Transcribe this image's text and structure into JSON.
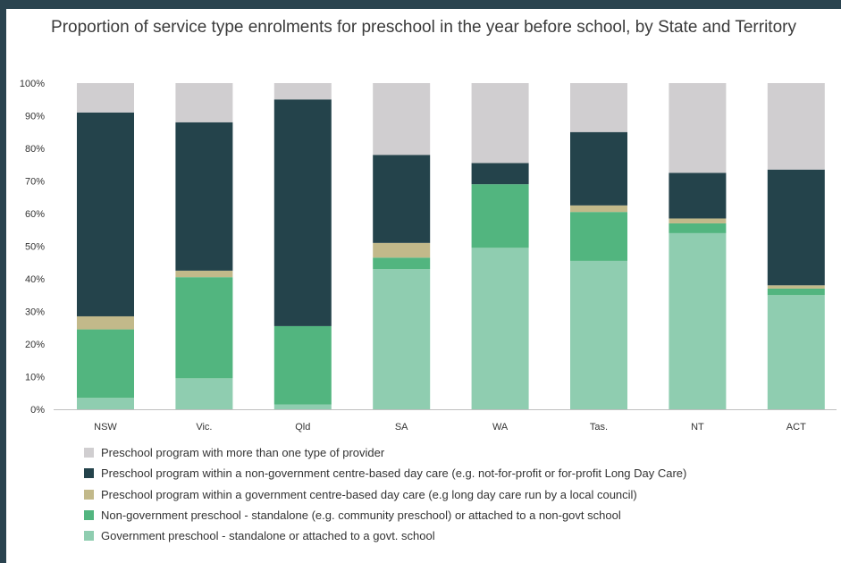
{
  "chart_data": {
    "type": "bar",
    "stacked": true,
    "title": "Proportion of service type enrolments for preschool in the year before school, by State and Territory",
    "categories": [
      "NSW",
      "Vic.",
      "Qld",
      "SA",
      "WA",
      "Tas.",
      "NT",
      "ACT"
    ],
    "ylim": [
      0,
      100
    ],
    "yticks": [
      "0%",
      "10%",
      "20%",
      "30%",
      "40%",
      "50%",
      "60%",
      "70%",
      "80%",
      "90%",
      "100%"
    ],
    "grid": false,
    "legend_position": "bottom",
    "series": [
      {
        "name": "Government preschool - standalone or attached to a govt. school",
        "color": "#8fcdb0",
        "values": [
          3.5,
          9.5,
          1.5,
          43,
          49.5,
          45.5,
          54,
          35
        ]
      },
      {
        "name": "Non-government preschool - standalone (e.g. community preschool) or attached to a non-govt school",
        "color": "#52b57f",
        "values": [
          21,
          31,
          24,
          3.5,
          19.5,
          15,
          3,
          2
        ]
      },
      {
        "name": "Preschool program within a government centre-based day care (e.g long day care run by a local council)",
        "color": "#c2b98a",
        "values": [
          4,
          2,
          0,
          4.5,
          0,
          2,
          1.5,
          1
        ]
      },
      {
        "name": "Preschool program within a non-government centre-based day care (e.g. not-for-profit or for-profit Long Day Care)",
        "color": "#24434b",
        "values": [
          62.5,
          45.5,
          69.5,
          27,
          6.5,
          22.5,
          14,
          35.5
        ]
      },
      {
        "name": "Preschool program with more than one type of provider",
        "color": "#d0ced0",
        "values": [
          9,
          12,
          5,
          22,
          24.5,
          15,
          27.5,
          26.5
        ]
      }
    ]
  }
}
